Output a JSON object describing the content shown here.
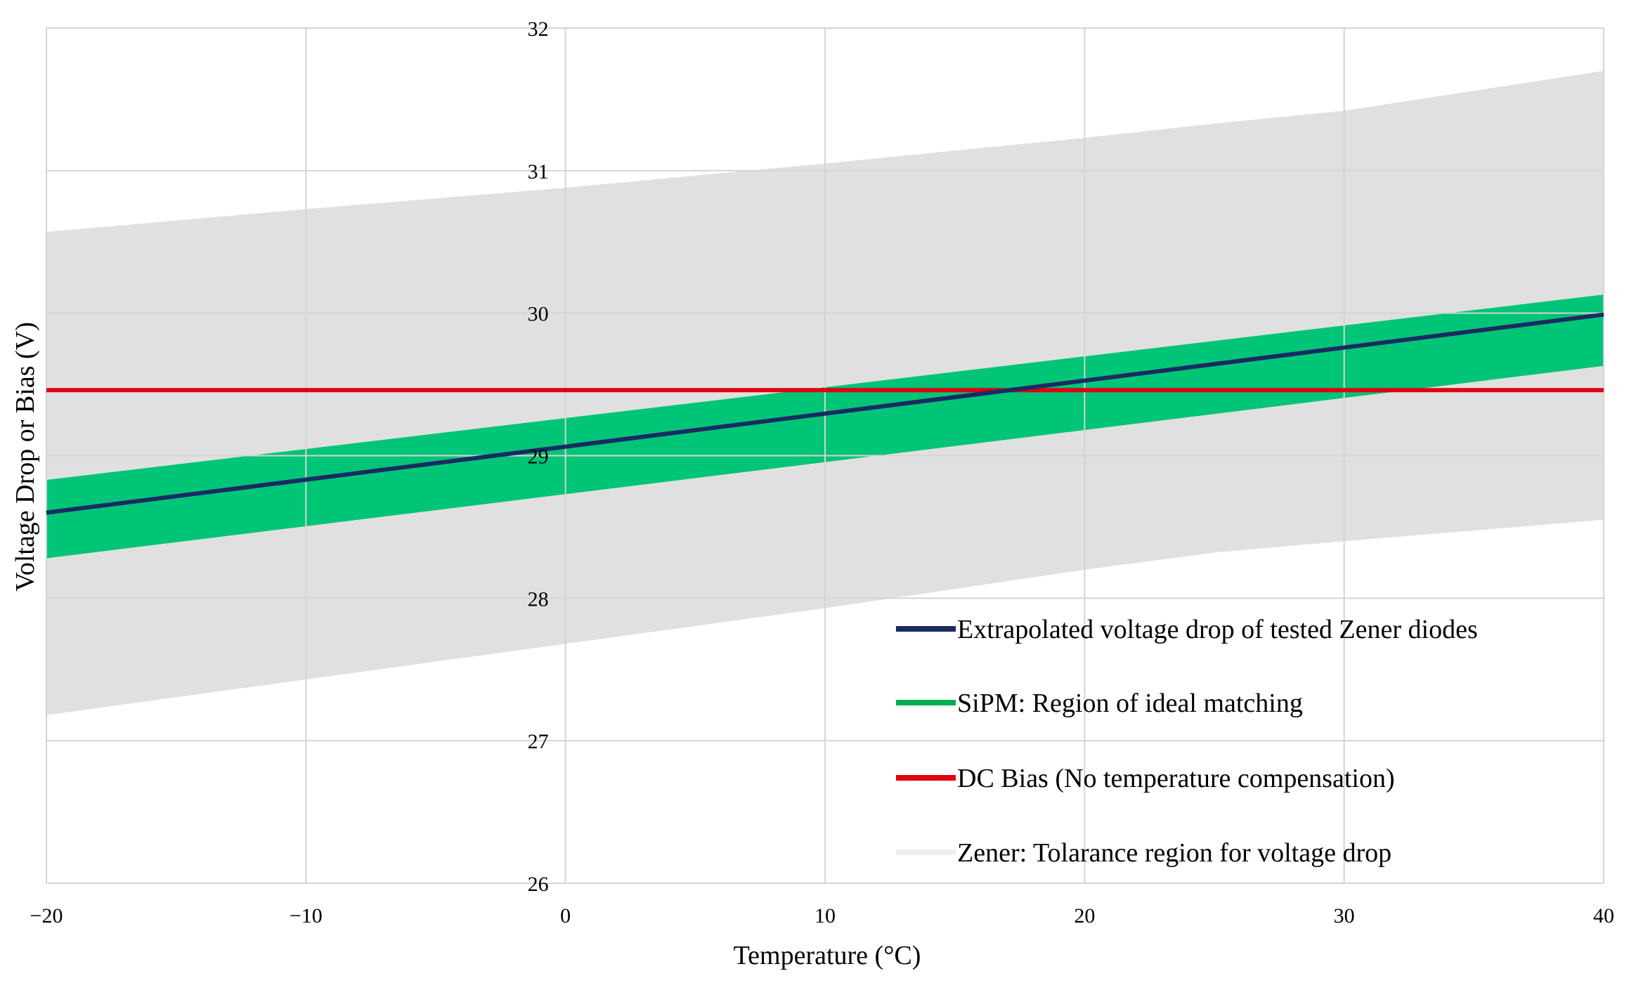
{
  "chart_data": {
    "type": "line",
    "title": "",
    "xlabel": "Temperature (°C)",
    "ylabel": "Voltage Drop or Bias (V)",
    "xlim": [
      -20,
      40
    ],
    "ylim": [
      26,
      32
    ],
    "x_ticks": [
      -20,
      -10,
      0,
      10,
      20,
      30,
      40
    ],
    "x_tick_labels": [
      "−20",
      "−10",
      "0",
      "10",
      "20",
      "30",
      "40"
    ],
    "y_ticks": [
      26,
      27,
      28,
      29,
      30,
      31,
      32
    ],
    "y_tick_labels": [
      "26",
      "27",
      "28",
      "29",
      "30",
      "31",
      "32"
    ],
    "grid": true,
    "legend_position": "bottom-right",
    "series": [
      {
        "name": "Zener: Tolarance region for voltage drop",
        "kind": "band",
        "color": "#e0e0e0",
        "legend_color": "#eeeeee",
        "x": [
          -20,
          -10,
          0,
          10,
          20,
          25,
          30,
          40
        ],
        "lower": [
          27.18,
          27.43,
          27.68,
          27.93,
          28.2,
          28.32,
          28.4,
          28.55
        ],
        "upper": [
          30.57,
          30.73,
          30.88,
          31.05,
          31.23,
          31.33,
          31.42,
          31.7
        ]
      },
      {
        "name": "SiPM: Region of ideal matching",
        "kind": "band",
        "color": "#00c476",
        "legend_color": "#00b050",
        "x": [
          -20,
          40
        ],
        "lower": [
          28.28,
          29.63
        ],
        "upper": [
          28.83,
          30.13
        ]
      },
      {
        "name": "DC Bias (No temperature compensation)",
        "kind": "line",
        "color": "#e0000f",
        "x": [
          -20,
          40
        ],
        "y": [
          29.46,
          29.46
        ]
      },
      {
        "name": "Extrapolated voltage drop of tested Zener diodes",
        "kind": "line",
        "color": "#1b2a63",
        "x": [
          -20,
          40
        ],
        "y": [
          28.6,
          29.99
        ]
      }
    ],
    "legend_order": [
      "Extrapolated voltage drop of tested Zener diodes",
      "SiPM: Region of ideal matching",
      "DC Bias (No temperature compensation)",
      "Zener: Tolarance region for voltage drop"
    ]
  }
}
